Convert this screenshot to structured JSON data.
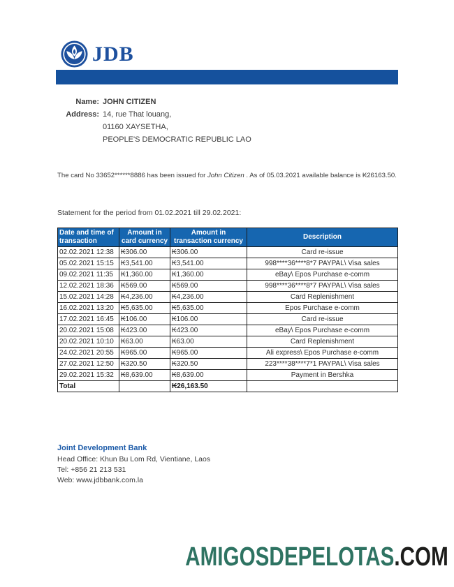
{
  "brand": {
    "logo_text": "JDB",
    "logo_icon": "lotus-icon",
    "colors": {
      "bar_blue": "#15519d",
      "logo_blue": "#1d509e",
      "table_header_blue": "#1666b0",
      "footer_link_blue": "#1e5ca9",
      "watermark_green": "#2e7362",
      "watermark_dark": "#1d1d1b"
    }
  },
  "customer": {
    "name_label": "Name:",
    "name": "JOHN CITIZEN",
    "address_label": "Address:",
    "address_lines": [
      "14, rue That louang,",
      "01160 XAYSETHA,",
      "PEOPLE'S DEMOCRATIC REPUBLIC LAO"
    ]
  },
  "card_notice": {
    "prefix": "The card No 33652******8886  has been issued for ",
    "holder": "John Citizen",
    "suffix": " . As of 05.03.2021 available balance is ₭26163.50."
  },
  "statement_line": "Statement for the period from 01.02.2021  till 29.02.2021:",
  "table": {
    "headers": [
      "Date and time of transaction",
      "Amount in card currency",
      "Amount in transaction currency",
      "Description"
    ],
    "rows": [
      [
        "02.02.2021 12:38",
        "₭306.00",
        "₭306.00",
        "Card re-issue"
      ],
      [
        "05.02.2021 15:15",
        "₭3,541.00",
        "₭3,541.00",
        "998****36****8*7 PAYPAL\\ Visa sales"
      ],
      [
        "09.02.2021 11:35",
        "₭1,360.00",
        "₭1,360.00",
        "eBay\\ Epos Purchase e-comm"
      ],
      [
        "12.02.2021 18:36",
        "₭569.00",
        "₭569.00",
        "998****36****8*7 PAYPAL\\ Visa sales"
      ],
      [
        "15.02.2021 14:28",
        "₭4,236.00",
        "₭4,236.00",
        "Card Replenishment"
      ],
      [
        "16.02.2021 13:20",
        "₭5,635.00",
        "₭5,635.00",
        "Epos Purchase e-comm"
      ],
      [
        "17.02.2021 16:45",
        "₭106.00",
        "₭106.00",
        "Card re-issue"
      ],
      [
        "20.02.2021 15:08",
        "₭423.00",
        "₭423.00",
        "eBay\\ Epos Purchase e-comm"
      ],
      [
        "20.02.2021 10:10",
        "₭63.00",
        "₭63.00",
        "Card Replenishment"
      ],
      [
        "24.02.2021 20:55",
        "₭965.00",
        "₭965.00",
        "Ali express\\ Epos Purchase e-comm"
      ],
      [
        "27.02.2021 12:50",
        "₭320.50",
        "₭320.50",
        "223****38****7*1 PAYPAL\\ Visa sales"
      ],
      [
        "29.02.2021 15:32",
        "₭8,639.00",
        "₭8,639.00",
        "Payment in Bershka"
      ]
    ],
    "total_label": "Total",
    "total_value": "₭26,163.50"
  },
  "footer": {
    "bank_name": "Joint Development Bank",
    "lines": [
      "Head Office: Khun Bu Lom Rd, Vientiane, Laos",
      "Tel: +856 21 213 531",
      "Web: www.jdbbank.com.la"
    ]
  },
  "watermark": {
    "main": "AMIGOSDEPELOTAS",
    "suffix": ".COM"
  }
}
